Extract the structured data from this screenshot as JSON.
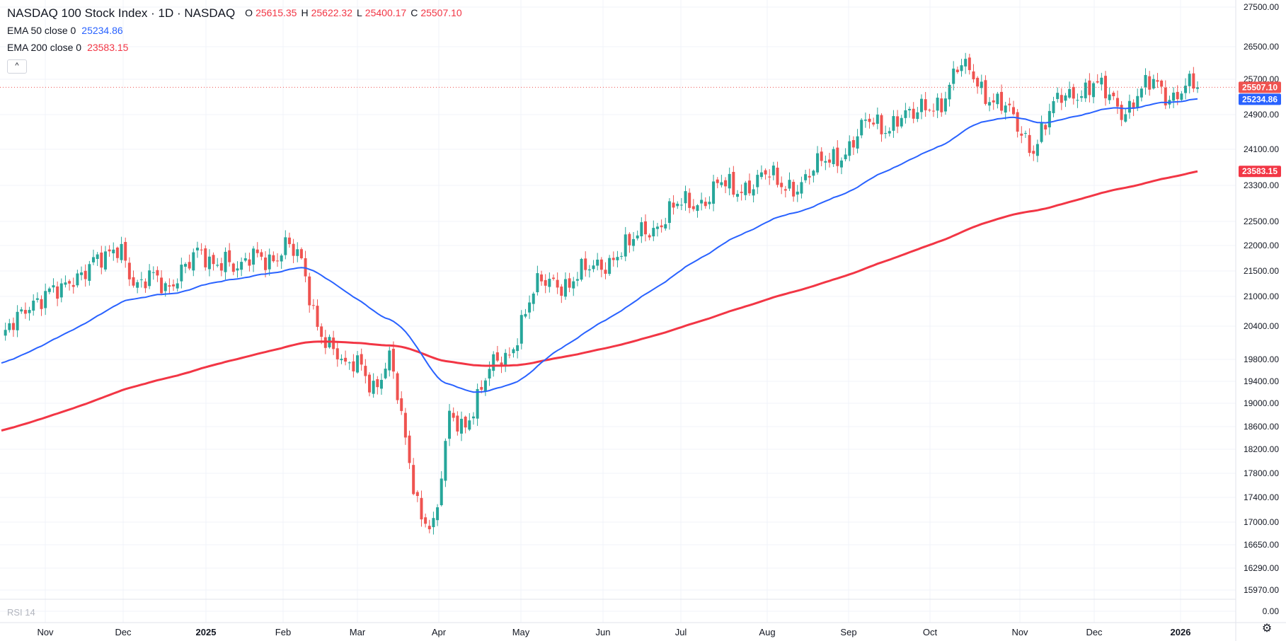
{
  "header": {
    "symbol": "NASDAQ 100 Stock Index · 1D · NASDAQ",
    "ohlc": [
      {
        "label": "O",
        "value": "25615.35"
      },
      {
        "label": "H",
        "value": "25622.32"
      },
      {
        "label": "L",
        "value": "25400.17"
      },
      {
        "label": "C",
        "value": "25507.10"
      }
    ]
  },
  "indicators": [
    {
      "name": "EMA 50 close 0",
      "value": "25234.86",
      "color": "#2962ff"
    },
    {
      "name": "EMA 200 close 0",
      "value": "23583.15",
      "color": "#f23645"
    }
  ],
  "collapse_icon": "chevron-up-icon",
  "rsi_label": "RSI 14",
  "settings_icon": "gear-icon",
  "colors": {
    "up": "#26a69a",
    "down": "#ef5350",
    "ema50": "#2962ff",
    "ema200": "#f23645",
    "grid": "#f0f3fa",
    "axis_text": "#131722"
  },
  "chart_data": {
    "type": "candlestick",
    "title": "NASDAQ 100 Stock Index · 1D · NASDAQ",
    "price_ticks": [
      "27500.00",
      "26500.00",
      "25700.00",
      "24900.00",
      "24100.00",
      "23300.00",
      "22500.00",
      "22000.00",
      "21500.00",
      "21000.00",
      "20400.00",
      "19800.00",
      "19400.00",
      "19000.00",
      "18600.00",
      "18200.00",
      "17800.00",
      "17400.00",
      "17000.00",
      "16650.00",
      "16290.00",
      "15970.00",
      "0.00"
    ],
    "time_ticks": [
      "Nov",
      "Dec",
      "2025",
      "Feb",
      "Mar",
      "Apr",
      "May",
      "Jun",
      "Jul",
      "Aug",
      "Sep",
      "Oct",
      "Nov",
      "Dec",
      "2026"
    ],
    "price_badges": [
      {
        "value": "25507.10",
        "series": "close"
      },
      {
        "value": "25234.86",
        "series": "ema50"
      },
      {
        "value": "23583.15",
        "series": "ema200"
      }
    ],
    "scale": "log",
    "monthly_path": [
      {
        "month": "2024-11",
        "points": [
          20150,
          20400,
          20950,
          21120
        ]
      },
      {
        "month": "2024-12",
        "points": [
          20950,
          21400,
          21800,
          21600,
          21950,
          21300
        ]
      },
      {
        "month": "2025-01",
        "points": [
          21300,
          21050,
          21650,
          21800,
          21500,
          21900
        ]
      },
      {
        "month": "2025-02",
        "points": [
          21500,
          21700,
          21800,
          22050,
          21600
        ]
      },
      {
        "month": "2025-03",
        "points": [
          20600,
          20100,
          19500,
          19800,
          19300,
          19700
        ]
      },
      {
        "month": "2025-04",
        "points": [
          18400,
          17200,
          16800,
          18800,
          18700,
          19100,
          19700
        ]
      },
      {
        "month": "2025-05",
        "points": [
          20000,
          20600,
          21200,
          21400,
          21200
        ]
      },
      {
        "month": "2025-06",
        "points": [
          21400,
          21700,
          21800,
          21900,
          22400
        ]
      },
      {
        "month": "2025-07",
        "points": [
          22500,
          22700,
          22900,
          23050,
          23250
        ]
      },
      {
        "month": "2025-08",
        "points": [
          23100,
          23400,
          23500,
          23200,
          23350
        ]
      },
      {
        "month": "2025-09",
        "points": [
          23500,
          23700,
          24000,
          24300,
          24600
        ]
      },
      {
        "month": "2025-10",
        "points": [
          24600,
          24900,
          24700,
          25100,
          25300,
          25900
        ]
      },
      {
        "month": "2025-11",
        "points": [
          25800,
          25400,
          25000,
          24500,
          24200,
          24800
        ]
      },
      {
        "month": "2025-12",
        "points": [
          25200,
          25500,
          25600,
          25200,
          25000,
          25400
        ]
      },
      {
        "month": "2026-01",
        "points": [
          25500,
          25300,
          25600,
          25507
        ]
      }
    ]
  }
}
